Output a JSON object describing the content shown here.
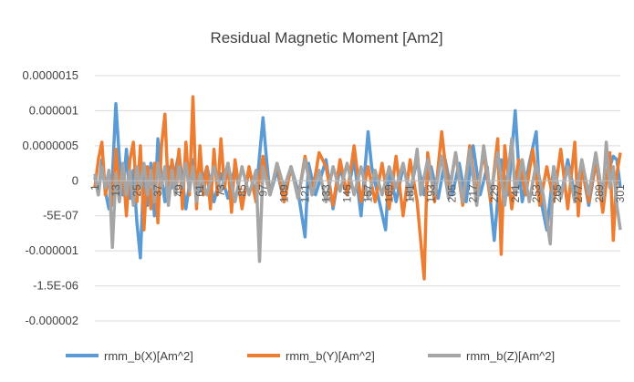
{
  "chart_data": {
    "type": "line",
    "title": "Residual Magnetic Moment [Am2]",
    "xlabel": "",
    "ylabel": "",
    "ylim": [
      -2e-06,
      1.5e-06
    ],
    "y_ticks": [
      {
        "value": 1.5e-06,
        "label": "0.0000015"
      },
      {
        "value": 1e-06,
        "label": "0.000001"
      },
      {
        "value": 5e-07,
        "label": "0.0000005"
      },
      {
        "value": 0,
        "label": "0"
      },
      {
        "value": -5e-07,
        "label": "-5E-07"
      },
      {
        "value": -1e-06,
        "label": "-0.000001"
      },
      {
        "value": -1.5e-06,
        "label": "-1.5E-06"
      },
      {
        "value": -2e-06,
        "label": "-0.000002"
      }
    ],
    "x_range": [
      1,
      301
    ],
    "x_tick_labels": [
      "1",
      "13",
      "25",
      "37",
      "49",
      "61",
      "73",
      "85",
      "97",
      "109",
      "121",
      "133",
      "145",
      "157",
      "169",
      "181",
      "193",
      "205",
      "217",
      "229",
      "241",
      "253",
      "265",
      "277",
      "289",
      "301"
    ],
    "grid": "horizontal",
    "legend_position": "bottom",
    "series": [
      {
        "name": "rmm_b(X)[Am^2]",
        "color": "#5B9BD5",
        "points": [
          [
            1,
            5e-08
          ],
          [
            3,
            -2e-07
          ],
          [
            5,
            3e-07
          ],
          [
            7,
            -1.5e-07
          ],
          [
            9,
            -4e-07
          ],
          [
            11,
            5e-08
          ],
          [
            13,
            1.1e-06
          ],
          [
            15,
            3e-07
          ],
          [
            17,
            -2e-07
          ],
          [
            19,
            4.5e-07
          ],
          [
            21,
            -2.5e-07
          ],
          [
            23,
            1.5e-07
          ],
          [
            25,
            -6e-07
          ],
          [
            27,
            -1.1e-06
          ],
          [
            29,
            2e-07
          ],
          [
            31,
            -3.5e-07
          ],
          [
            33,
            2.5e-07
          ],
          [
            35,
            -5e-07
          ],
          [
            37,
            6e-07
          ],
          [
            39,
            5e-08
          ],
          [
            41,
            -3e-07
          ],
          [
            43,
            2e-07
          ],
          [
            45,
            -1e-07
          ],
          [
            49,
            4e-07
          ],
          [
            53,
            -4e-07
          ],
          [
            57,
            3e-07
          ],
          [
            61,
            -1.5e-07
          ],
          [
            65,
            2e-07
          ],
          [
            69,
            -3e-07
          ],
          [
            73,
            1e-07
          ],
          [
            77,
            -2.5e-07
          ],
          [
            81,
            2e-07
          ],
          [
            85,
            -3.5e-07
          ],
          [
            89,
            1.5e-07
          ],
          [
            93,
            -2e-07
          ],
          [
            97,
            9e-07
          ],
          [
            99,
            3e-07
          ],
          [
            101,
            -2e-07
          ],
          [
            105,
            1.5e-07
          ],
          [
            109,
            -3e-07
          ],
          [
            113,
            2e-07
          ],
          [
            117,
            -1.5e-07
          ],
          [
            121,
            -8e-07
          ],
          [
            123,
            2.5e-07
          ],
          [
            127,
            -2e-07
          ],
          [
            133,
            3e-07
          ],
          [
            137,
            -4e-07
          ],
          [
            141,
            2e-07
          ],
          [
            145,
            -2e-07
          ],
          [
            149,
            3e-07
          ],
          [
            153,
            -5e-07
          ],
          [
            157,
            7e-07
          ],
          [
            159,
            2e-07
          ],
          [
            163,
            -2.5e-07
          ],
          [
            167,
            -7e-07
          ],
          [
            169,
            1.5e-07
          ],
          [
            173,
            -3e-07
          ],
          [
            177,
            2e-07
          ],
          [
            181,
            -1.5e-07
          ],
          [
            185,
            3e-07
          ],
          [
            189,
            -2e-07
          ],
          [
            193,
            2e-07
          ],
          [
            197,
            -2.5e-07
          ],
          [
            201,
            3e-07
          ],
          [
            205,
            -2e-07
          ],
          [
            209,
            2.5e-07
          ],
          [
            213,
            -3e-07
          ],
          [
            217,
            5e-07
          ],
          [
            221,
            -2e-07
          ],
          [
            225,
            2e-07
          ],
          [
            229,
            -8.5e-07
          ],
          [
            233,
            3e-07
          ],
          [
            237,
            -2e-07
          ],
          [
            241,
            1e-06
          ],
          [
            243,
            2e-07
          ],
          [
            245,
            -3e-07
          ],
          [
            249,
            2.5e-07
          ],
          [
            253,
            7e-07
          ],
          [
            255,
            -2e-07
          ],
          [
            259,
            -7e-07
          ],
          [
            263,
            2e-07
          ],
          [
            267,
            -2.5e-07
          ],
          [
            271,
            3e-07
          ],
          [
            275,
            -2e-07
          ],
          [
            279,
            2e-07
          ],
          [
            283,
            -3.5e-07
          ],
          [
            287,
            2.5e-07
          ],
          [
            291,
            -2e-07
          ],
          [
            295,
            2e-07
          ],
          [
            297,
            3.5e-07
          ],
          [
            299,
            3e-07
          ],
          [
            301,
            -1e-07
          ]
        ]
      },
      {
        "name": "rmm_b(Y)[Am^2]",
        "color": "#ED7D31",
        "points": [
          [
            1,
            -1e-07
          ],
          [
            3,
            3e-07
          ],
          [
            5,
            5.5e-07
          ],
          [
            7,
            -2e-07
          ],
          [
            9,
            1e-07
          ],
          [
            11,
            -3.5e-07
          ],
          [
            13,
            4.5e-07
          ],
          [
            15,
            -1e-07
          ],
          [
            17,
            2e-07
          ],
          [
            19,
            -5e-07
          ],
          [
            21,
            3e-07
          ],
          [
            23,
            5.5e-07
          ],
          [
            25,
            -3e-07
          ],
          [
            27,
            5e-07
          ],
          [
            29,
            -7e-07
          ],
          [
            31,
            2e-07
          ],
          [
            33,
            -4e-07
          ],
          [
            35,
            2.5e-07
          ],
          [
            37,
            -6e-07
          ],
          [
            39,
            5e-07
          ],
          [
            41,
            9.5e-07
          ],
          [
            43,
            -2e-07
          ],
          [
            45,
            3e-07
          ],
          [
            47,
            -1e-07
          ],
          [
            49,
            4.5e-07
          ],
          [
            51,
            -4e-07
          ],
          [
            53,
            5.5e-07
          ],
          [
            55,
            -2e-07
          ],
          [
            57,
            1.2e-06
          ],
          [
            59,
            -4e-07
          ],
          [
            61,
            5e-07
          ],
          [
            63,
            -2e-07
          ],
          [
            65,
            2e-07
          ],
          [
            67,
            -4e-07
          ],
          [
            69,
            4.5e-07
          ],
          [
            71,
            -2e-07
          ],
          [
            73,
            6e-07
          ],
          [
            75,
            -1e-07
          ],
          [
            77,
            2.5e-07
          ],
          [
            79,
            -4.5e-07
          ],
          [
            81,
            3e-07
          ],
          [
            85,
            -4e-07
          ],
          [
            89,
            2e-07
          ],
          [
            93,
            -3e-07
          ],
          [
            97,
            3.5e-07
          ],
          [
            101,
            -2e-07
          ],
          [
            105,
            2.5e-07
          ],
          [
            109,
            -3e-07
          ],
          [
            113,
            2e-07
          ],
          [
            117,
            -2.5e-07
          ],
          [
            121,
            3.5e-07
          ],
          [
            125,
            -2e-07
          ],
          [
            129,
            4e-07
          ],
          [
            133,
            2e-07
          ],
          [
            137,
            -3.5e-07
          ],
          [
            141,
            3e-07
          ],
          [
            145,
            -2e-07
          ],
          [
            149,
            5e-07
          ],
          [
            153,
            -3e-07
          ],
          [
            157,
            2e-07
          ],
          [
            161,
            -3e-07
          ],
          [
            165,
            2.5e-07
          ],
          [
            169,
            -4e-07
          ],
          [
            173,
            3.5e-07
          ],
          [
            177,
            -5e-07
          ],
          [
            181,
            3e-07
          ],
          [
            185,
            -3e-07
          ],
          [
            189,
            -1.4e-06
          ],
          [
            191,
            4e-07
          ],
          [
            195,
            -3e-07
          ],
          [
            199,
            7e-07
          ],
          [
            203,
            -2e-07
          ],
          [
            207,
            4e-07
          ],
          [
            211,
            -3.5e-07
          ],
          [
            215,
            5e-07
          ],
          [
            219,
            -2e-07
          ],
          [
            223,
            4e-07
          ],
          [
            227,
            -3e-07
          ],
          [
            231,
            6e-07
          ],
          [
            233,
            -1.05e-06
          ],
          [
            235,
            5e-07
          ],
          [
            239,
            -4e-07
          ],
          [
            243,
            3e-07
          ],
          [
            247,
            -2e-07
          ],
          [
            251,
            4.5e-07
          ],
          [
            255,
            -3.5e-07
          ],
          [
            259,
            2e-07
          ],
          [
            263,
            -3e-07
          ],
          [
            267,
            4.5e-07
          ],
          [
            271,
            -4e-07
          ],
          [
            275,
            5.5e-07
          ],
          [
            277,
            -5e-07
          ],
          [
            279,
            2e-07
          ],
          [
            283,
            -3e-07
          ],
          [
            287,
            3e-07
          ],
          [
            291,
            -4.5e-07
          ],
          [
            295,
            4e-07
          ],
          [
            297,
            -8.5e-07
          ],
          [
            299,
            1e-07
          ],
          [
            301,
            4e-07
          ]
        ]
      },
      {
        "name": "rmm_b(Z)[Am^2]",
        "color": "#A5A5A5",
        "points": [
          [
            1,
            1e-07
          ],
          [
            3,
            -2e-07
          ],
          [
            5,
            2e-07
          ],
          [
            7,
            -1e-07
          ],
          [
            9,
            1.5e-07
          ],
          [
            11,
            -9.5e-07
          ],
          [
            13,
            1e-07
          ],
          [
            15,
            -3e-07
          ],
          [
            17,
            2.5e-07
          ],
          [
            19,
            -2e-07
          ],
          [
            21,
            1.5e-07
          ],
          [
            23,
            -3.5e-07
          ],
          [
            25,
            2e-07
          ],
          [
            27,
            -1e-07
          ],
          [
            29,
            2.5e-07
          ],
          [
            31,
            -2e-07
          ],
          [
            33,
            1.5e-07
          ],
          [
            35,
            -3e-07
          ],
          [
            37,
            2.5e-07
          ],
          [
            39,
            -1e-07
          ],
          [
            41,
            2e-07
          ],
          [
            43,
            -3.5e-07
          ],
          [
            45,
            1.5e-07
          ],
          [
            47,
            -2e-07
          ],
          [
            49,
            2e-07
          ],
          [
            51,
            -1e-07
          ],
          [
            53,
            2.5e-07
          ],
          [
            55,
            -1.5e-07
          ],
          [
            57,
            2e-07
          ],
          [
            59,
            -3e-07
          ],
          [
            61,
            1e-07
          ],
          [
            65,
            -2e-07
          ],
          [
            69,
            2e-07
          ],
          [
            73,
            -1.5e-07
          ],
          [
            77,
            2.5e-07
          ],
          [
            81,
            -3e-07
          ],
          [
            85,
            2e-07
          ],
          [
            89,
            -2e-07
          ],
          [
            93,
            1.5e-07
          ],
          [
            95,
            -1.15e-06
          ],
          [
            97,
            2e-07
          ],
          [
            101,
            -2e-07
          ],
          [
            105,
            2.5e-07
          ],
          [
            109,
            -1e-07
          ],
          [
            113,
            2e-07
          ],
          [
            117,
            -2.5e-07
          ],
          [
            121,
            3e-07
          ],
          [
            125,
            -2e-07
          ],
          [
            129,
            1.5e-07
          ],
          [
            133,
            -3e-07
          ],
          [
            137,
            2e-07
          ],
          [
            141,
            -1.5e-07
          ],
          [
            145,
            2.5e-07
          ],
          [
            149,
            -2e-07
          ],
          [
            153,
            2e-07
          ],
          [
            157,
            -2.5e-07
          ],
          [
            161,
            1.5e-07
          ],
          [
            165,
            -2e-07
          ],
          [
            169,
            2e-07
          ],
          [
            173,
            -1e-07
          ],
          [
            177,
            2.5e-07
          ],
          [
            181,
            -2.5e-07
          ],
          [
            185,
            4.5e-07
          ],
          [
            187,
            -2e-07
          ],
          [
            191,
            3e-07
          ],
          [
            195,
            -2e-07
          ],
          [
            199,
            3.5e-07
          ],
          [
            203,
            -2.5e-07
          ],
          [
            207,
            4e-07
          ],
          [
            211,
            -3e-07
          ],
          [
            215,
            4.5e-07
          ],
          [
            219,
            -3.5e-07
          ],
          [
            223,
            5e-07
          ],
          [
            227,
            -2e-07
          ],
          [
            231,
            4e-07
          ],
          [
            235,
            -3.5e-07
          ],
          [
            239,
            6e-07
          ],
          [
            241,
            -2e-07
          ],
          [
            245,
            3e-07
          ],
          [
            249,
            -3e-07
          ],
          [
            253,
            2.5e-07
          ],
          [
            257,
            -2e-07
          ],
          [
            261,
            -9e-07
          ],
          [
            263,
            2e-07
          ],
          [
            267,
            -2.5e-07
          ],
          [
            271,
            2e-07
          ],
          [
            275,
            -3e-07
          ],
          [
            279,
            3e-07
          ],
          [
            283,
            -2e-07
          ],
          [
            287,
            4e-07
          ],
          [
            291,
            -2.5e-07
          ],
          [
            293,
            5.5e-07
          ],
          [
            295,
            -1e-07
          ],
          [
            297,
            2e-07
          ],
          [
            299,
            -3.5e-07
          ],
          [
            301,
            -7e-07
          ]
        ]
      }
    ]
  }
}
